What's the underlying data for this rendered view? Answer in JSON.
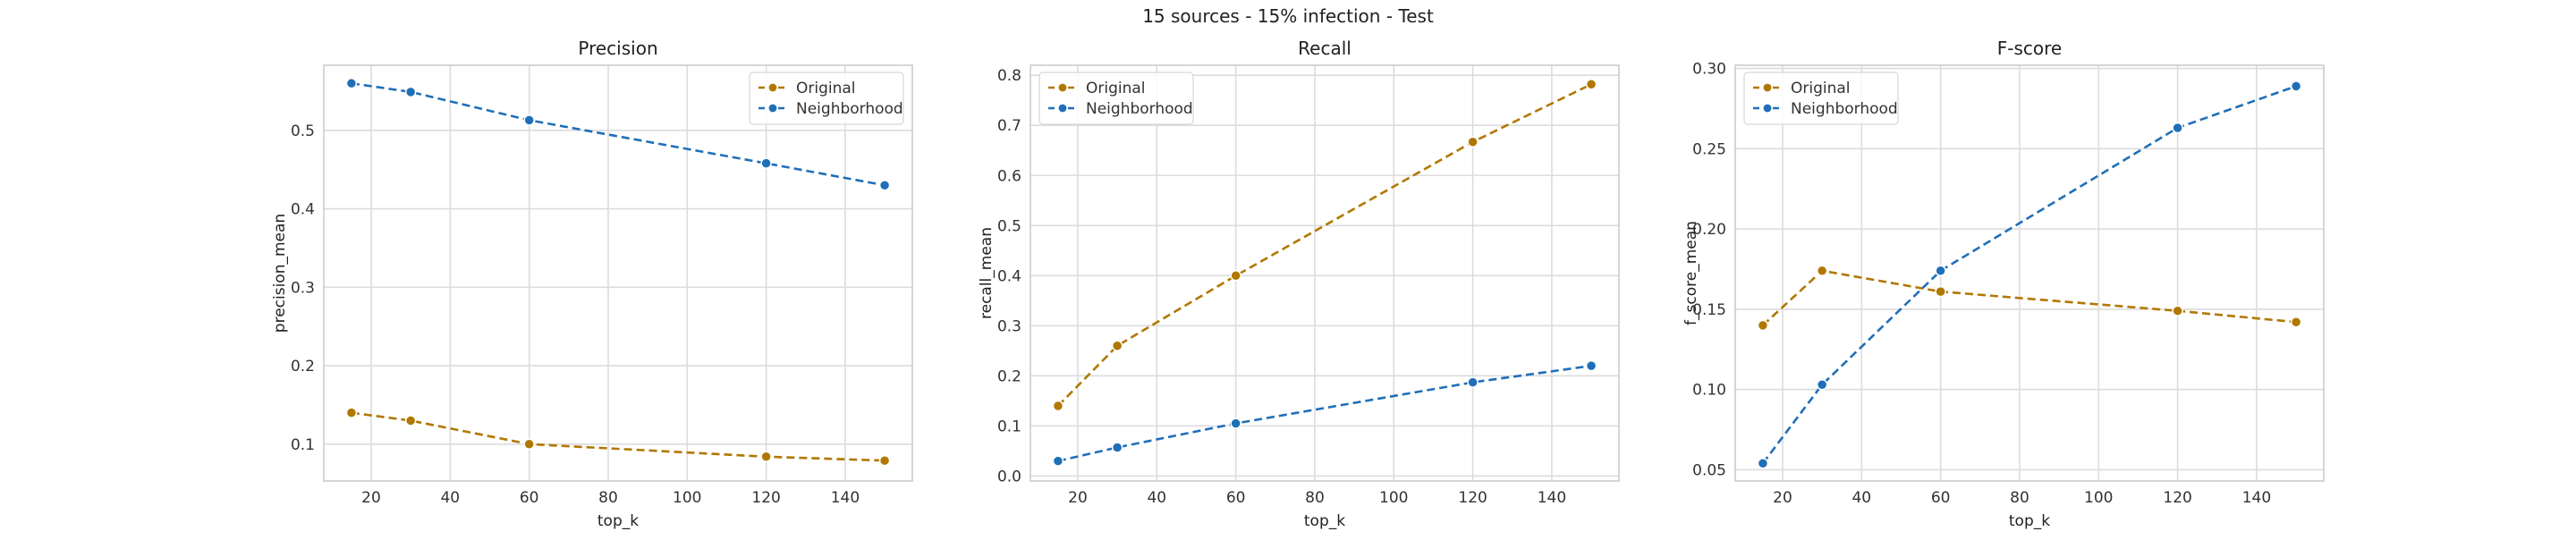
{
  "figure": {
    "title": "15 sources - 15% infection - Test"
  },
  "colors": {
    "original": "#b07800",
    "neighborhood": "#1f6fb8",
    "grid": "#dcdcdc",
    "axis": "#cccccc",
    "text": "#333333"
  },
  "chart_data": [
    {
      "type": "line",
      "title": "Precision",
      "xlabel": "top_k",
      "ylabel": "precision_mean",
      "x": [
        15,
        30,
        60,
        120,
        150
      ],
      "xlim": [
        8,
        157
      ],
      "ylim": [
        0.053,
        0.583
      ],
      "xticks": [
        20,
        40,
        60,
        80,
        100,
        120,
        140
      ],
      "yticks": [
        0.1,
        0.2,
        0.3,
        0.4,
        0.5
      ],
      "yticklabels": [
        "0.1",
        "0.2",
        "0.3",
        "0.4",
        "0.5"
      ],
      "legend": "top-right",
      "grid": true,
      "series": [
        {
          "name": "Original",
          "color": "#b07800",
          "values": [
            0.14,
            0.13,
            0.1,
            0.084,
            0.079
          ]
        },
        {
          "name": "Neighborhood",
          "color": "#1f6fb8",
          "values": [
            0.56,
            0.549,
            0.513,
            0.458,
            0.43
          ]
        }
      ]
    },
    {
      "type": "line",
      "title": "Recall",
      "xlabel": "top_k",
      "ylabel": "recall_mean",
      "x": [
        15,
        30,
        60,
        120,
        150
      ],
      "xlim": [
        8,
        157
      ],
      "ylim": [
        -0.01,
        0.82
      ],
      "xticks": [
        20,
        40,
        60,
        80,
        100,
        120,
        140
      ],
      "yticks": [
        0.0,
        0.1,
        0.2,
        0.3,
        0.4,
        0.5,
        0.6,
        0.7,
        0.8
      ],
      "yticklabels": [
        "0.0",
        "0.1",
        "0.2",
        "0.3",
        "0.4",
        "0.5",
        "0.6",
        "0.7",
        "0.8"
      ],
      "legend": "top-left",
      "grid": true,
      "series": [
        {
          "name": "Original",
          "color": "#b07800",
          "values": [
            0.14,
            0.26,
            0.4,
            0.667,
            0.782
          ]
        },
        {
          "name": "Neighborhood",
          "color": "#1f6fb8",
          "values": [
            0.03,
            0.057,
            0.105,
            0.187,
            0.22
          ]
        }
      ]
    },
    {
      "type": "line",
      "title": "F-score",
      "xlabel": "top_k",
      "ylabel": "f_score_mean",
      "x": [
        15,
        30,
        60,
        120,
        150
      ],
      "xlim": [
        8,
        157
      ],
      "ylim": [
        0.043,
        0.302
      ],
      "xticks": [
        20,
        40,
        60,
        80,
        100,
        120,
        140
      ],
      "yticks": [
        0.05,
        0.1,
        0.15,
        0.2,
        0.25,
        0.3
      ],
      "yticklabels": [
        "0.05",
        "0.10",
        "0.15",
        "0.20",
        "0.25",
        "0.30"
      ],
      "legend": "top-left",
      "grid": true,
      "series": [
        {
          "name": "Original",
          "color": "#b07800",
          "values": [
            0.14,
            0.174,
            0.161,
            0.149,
            0.142
          ]
        },
        {
          "name": "Neighborhood",
          "color": "#1f6fb8",
          "values": [
            0.054,
            0.103,
            0.174,
            0.263,
            0.289
          ]
        }
      ]
    }
  ]
}
